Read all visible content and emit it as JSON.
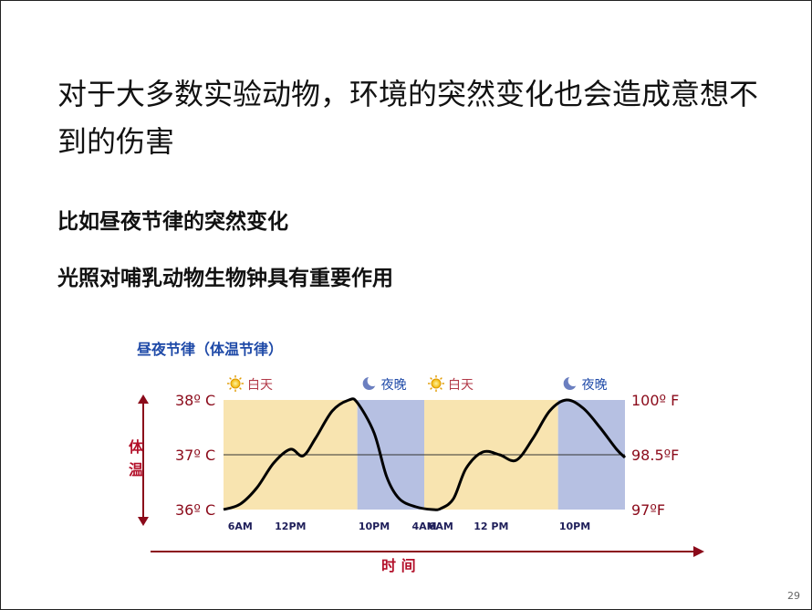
{
  "slide": {
    "title": "对于大多数实验动物，环境的突然变化也会造成意想不到的伤害",
    "bullet1": "比如昼夜节律的突然变化",
    "bullet2": "光照对哺乳动物生物钟具有重要作用",
    "page_number": "29"
  },
  "colors": {
    "day_band": "#f8e4b0",
    "night_band": "#b6c0e2",
    "curve": "#000000",
    "axis_arrow": "#8b0a1a",
    "axis_label": "#b3102a",
    "title_blue": "#1f4aa8"
  },
  "icons": {
    "day": "sun-icon",
    "night": "moon-icon"
  },
  "chart_data": {
    "type": "line",
    "title": "昼夜节律（体温节律）",
    "xlabel": "时 间",
    "ylabel": "体温",
    "bands": [
      {
        "label": "白天",
        "kind": "day",
        "from": 0,
        "to": 16
      },
      {
        "label": "夜晚",
        "kind": "night",
        "from": 16,
        "to": 24
      },
      {
        "label": "白天",
        "kind": "day",
        "from": 24,
        "to": 40
      },
      {
        "label": "夜晚",
        "kind": "night",
        "from": 40,
        "to": 48
      }
    ],
    "x_ticks": [
      {
        "x": 2,
        "label": "6AM"
      },
      {
        "x": 8,
        "label": "12PM"
      },
      {
        "x": 18,
        "label": "10PM"
      },
      {
        "x": 24,
        "label": "4AM"
      },
      {
        "x": 26,
        "label": "6AM"
      },
      {
        "x": 32,
        "label": "12 PM"
      },
      {
        "x": 42,
        "label": "10PM"
      }
    ],
    "y_ticks_left": [
      {
        "y": 38,
        "label": "38º C"
      },
      {
        "y": 37,
        "label": "37º C"
      },
      {
        "y": 36,
        "label": "36º C"
      }
    ],
    "y_ticks_right": [
      {
        "y": 38,
        "label": "100º F"
      },
      {
        "y": 37,
        "label": "98.5ºF"
      },
      {
        "y": 36,
        "label": "97ºF"
      }
    ],
    "xlim": [
      0,
      48
    ],
    "ylim": [
      36,
      38
    ],
    "reference_line": 37,
    "series": [
      {
        "x": [
          0,
          2,
          4,
          6,
          8,
          9.5,
          11,
          13,
          15,
          16,
          18,
          19.5,
          21,
          23,
          25,
          26,
          27.5,
          29,
          31,
          33,
          35,
          37,
          39,
          41,
          43,
          45,
          47,
          48
        ],
        "y": [
          36.0,
          36.1,
          36.4,
          36.85,
          37.1,
          36.98,
          37.3,
          37.8,
          38.0,
          37.95,
          37.4,
          36.6,
          36.2,
          36.05,
          36.0,
          36.02,
          36.2,
          36.75,
          37.05,
          37.0,
          36.9,
          37.3,
          37.8,
          38.0,
          37.85,
          37.5,
          37.1,
          36.95
        ]
      }
    ]
  }
}
